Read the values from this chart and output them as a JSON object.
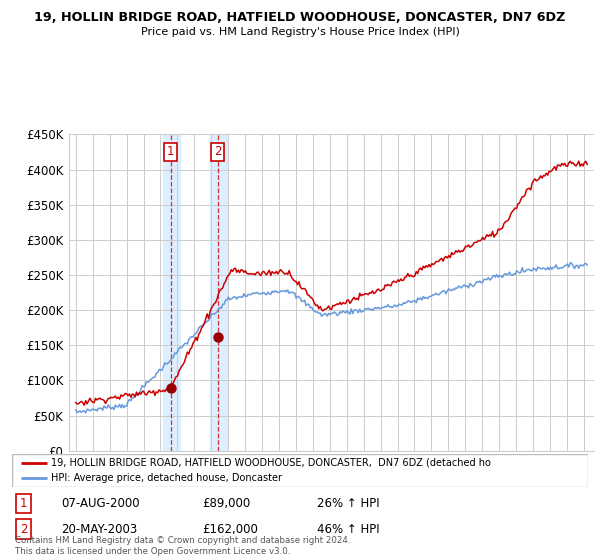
{
  "title1": "19, HOLLIN BRIDGE ROAD, HATFIELD WOODHOUSE, DONCASTER, DN7 6DZ",
  "title2": "Price paid vs. HM Land Registry's House Price Index (HPI)",
  "legend_line1": "19, HOLLIN BRIDGE ROAD, HATFIELD WOODHOUSE, DONCASTER,  DN7 6DZ (detached ho",
  "legend_line2": "HPI: Average price, detached house, Doncaster",
  "sale1_date": "07-AUG-2000",
  "sale1_price": "£89,000",
  "sale1_hpi": "26% ↑ HPI",
  "sale1_year": 2000.6,
  "sale1_value": 89000,
  "sale2_date": "20-MAY-2003",
  "sale2_price": "£162,000",
  "sale2_hpi": "46% ↑ HPI",
  "sale2_year": 2003.38,
  "sale2_value": 162000,
  "footer": "Contains HM Land Registry data © Crown copyright and database right 2024.\nThis data is licensed under the Open Government Licence v3.0.",
  "hpi_color": "#6699dd",
  "price_color": "#cc0000",
  "ylim": [
    0,
    450000
  ],
  "yticks": [
    0,
    50000,
    100000,
    150000,
    200000,
    250000,
    300000,
    350000,
    400000,
    450000
  ],
  "background_color": "#ffffff",
  "shaded_color": "#ddeeff",
  "grid_color": "#cccccc"
}
